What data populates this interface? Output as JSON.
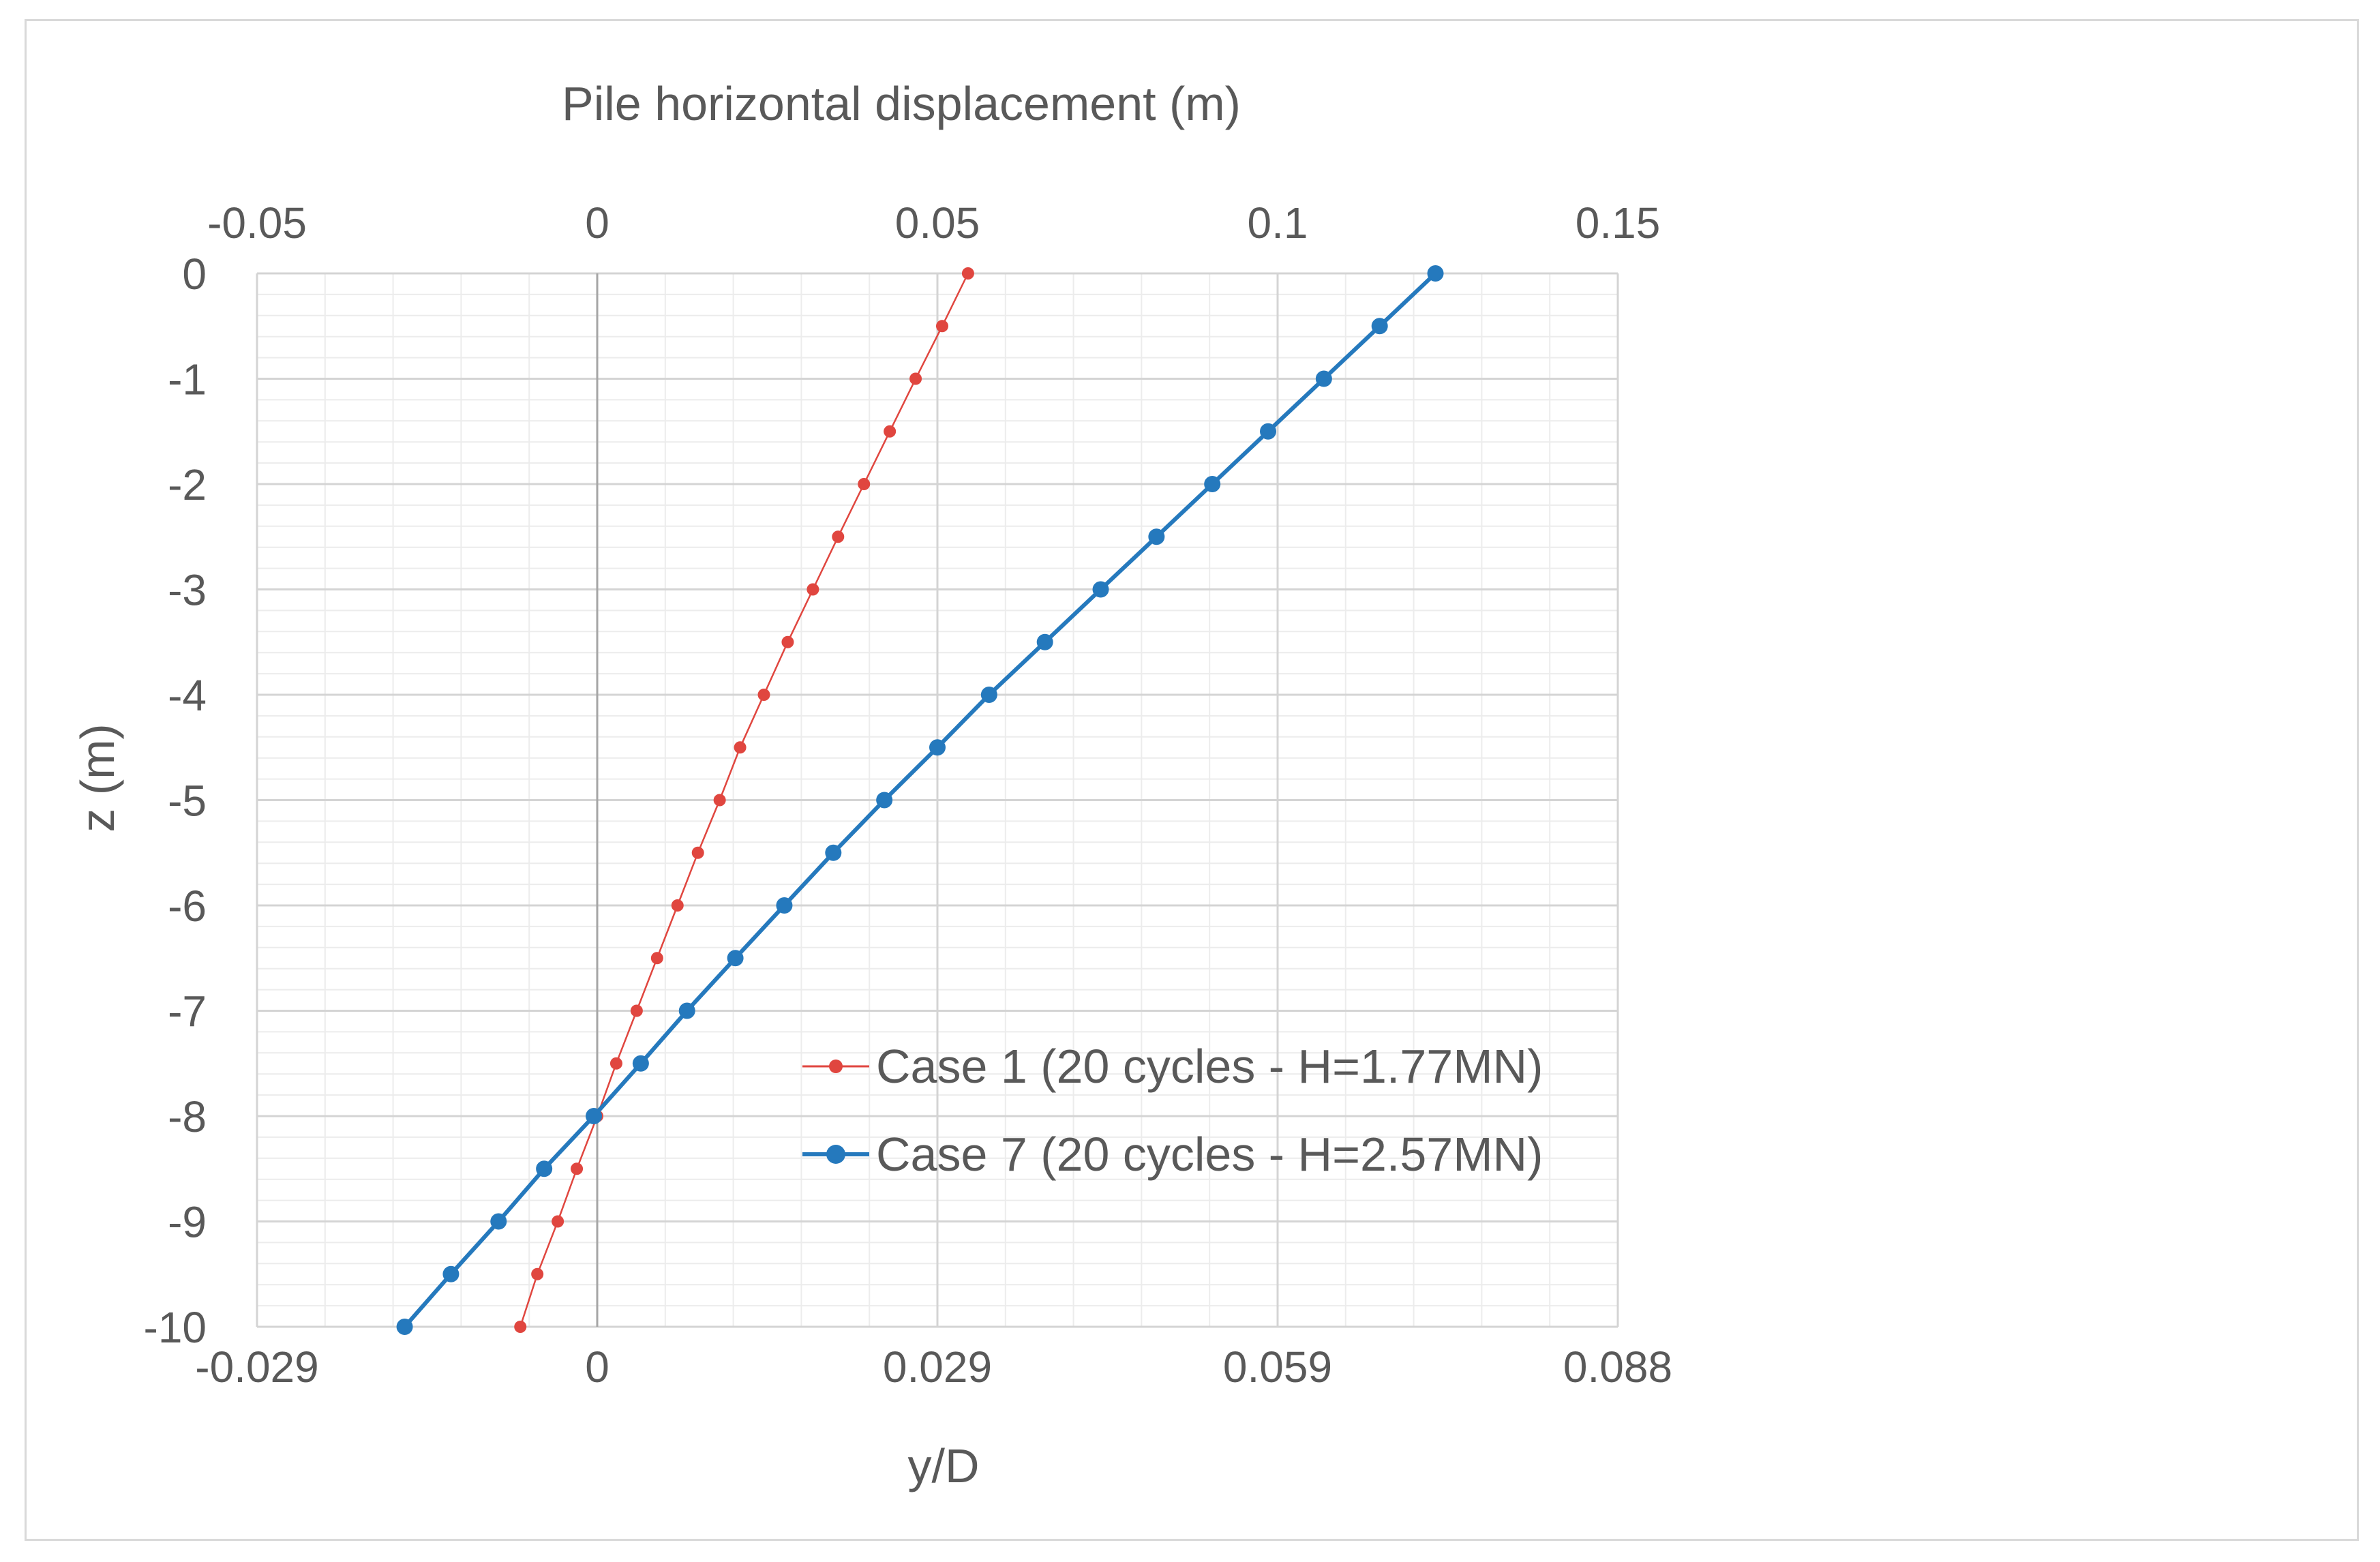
{
  "chart_data": {
    "type": "line",
    "title": "",
    "top_axis": {
      "label": "Pile horizontal displacement (m)",
      "range": [
        -0.05,
        0.15
      ],
      "ticks": [
        "-0.05",
        "0",
        "0.05",
        "0.1",
        "0.15"
      ],
      "tick_values": [
        -0.05,
        0,
        0.05,
        0.1,
        0.15
      ]
    },
    "bottom_axis": {
      "label": "y/D",
      "ticks": [
        "-0.029",
        "0",
        "0.029",
        "0.059",
        "0.088"
      ],
      "tick_values": [
        -0.05,
        0,
        0.05,
        0.1,
        0.15
      ]
    },
    "y_axis": {
      "label": "z (m)",
      "range": [
        -10,
        0
      ],
      "ticks": [
        "0",
        "-1",
        "-2",
        "-3",
        "-4",
        "-5",
        "-6",
        "-7",
        "-8",
        "-9",
        "-10"
      ],
      "tick_values": [
        0,
        -1,
        -2,
        -3,
        -4,
        -5,
        -6,
        -7,
        -8,
        -9,
        -10
      ]
    },
    "grid": true,
    "legend_position": "bottom-right",
    "series": [
      {
        "name": "Case 1  (20 cycles - H=1.77MN)",
        "color": "#e0463f",
        "marker": "small-circle",
        "line": "thin",
        "points": [
          {
            "x": 0.0545,
            "z": 0
          },
          {
            "x": 0.0507,
            "z": -0.5
          },
          {
            "x": 0.0468,
            "z": -1
          },
          {
            "x": 0.043,
            "z": -1.5
          },
          {
            "x": 0.0392,
            "z": -2
          },
          {
            "x": 0.0354,
            "z": -2.5
          },
          {
            "x": 0.0317,
            "z": -3
          },
          {
            "x": 0.028,
            "z": -3.5
          },
          {
            "x": 0.0245,
            "z": -4
          },
          {
            "x": 0.021,
            "z": -4.5
          },
          {
            "x": 0.018,
            "z": -5
          },
          {
            "x": 0.0148,
            "z": -5.5
          },
          {
            "x": 0.0118,
            "z": -6
          },
          {
            "x": 0.0088,
            "z": -6.5
          },
          {
            "x": 0.0058,
            "z": -7
          },
          {
            "x": 0.0028,
            "z": -7.5
          },
          {
            "x": 0.0,
            "z": -8
          },
          {
            "x": -0.003,
            "z": -8.5
          },
          {
            "x": -0.0058,
            "z": -9
          },
          {
            "x": -0.0088,
            "z": -9.5
          },
          {
            "x": -0.0113,
            "z": -10
          }
        ]
      },
      {
        "name": "Case 7 (20 cycles - H=2.57MN)",
        "color": "#2579bd",
        "marker": "circle",
        "line": "thick",
        "points": [
          {
            "x": 0.1232,
            "z": 0
          },
          {
            "x": 0.115,
            "z": -0.5
          },
          {
            "x": 0.1068,
            "z": -1
          },
          {
            "x": 0.0986,
            "z": -1.5
          },
          {
            "x": 0.0904,
            "z": -2
          },
          {
            "x": 0.0822,
            "z": -2.5
          },
          {
            "x": 0.074,
            "z": -3
          },
          {
            "x": 0.0658,
            "z": -3.5
          },
          {
            "x": 0.0576,
            "z": -4
          },
          {
            "x": 0.05,
            "z": -4.5
          },
          {
            "x": 0.0422,
            "z": -5
          },
          {
            "x": 0.0347,
            "z": -5.5
          },
          {
            "x": 0.0275,
            "z": -6
          },
          {
            "x": 0.0203,
            "z": -6.5
          },
          {
            "x": 0.0132,
            "z": -7
          },
          {
            "x": 0.0064,
            "z": -7.5
          },
          {
            "x": -0.0005,
            "z": -8
          },
          {
            "x": -0.0078,
            "z": -8.5
          },
          {
            "x": -0.0145,
            "z": -9
          },
          {
            "x": -0.0215,
            "z": -9.5
          },
          {
            "x": -0.0283,
            "z": -10
          }
        ]
      }
    ]
  }
}
